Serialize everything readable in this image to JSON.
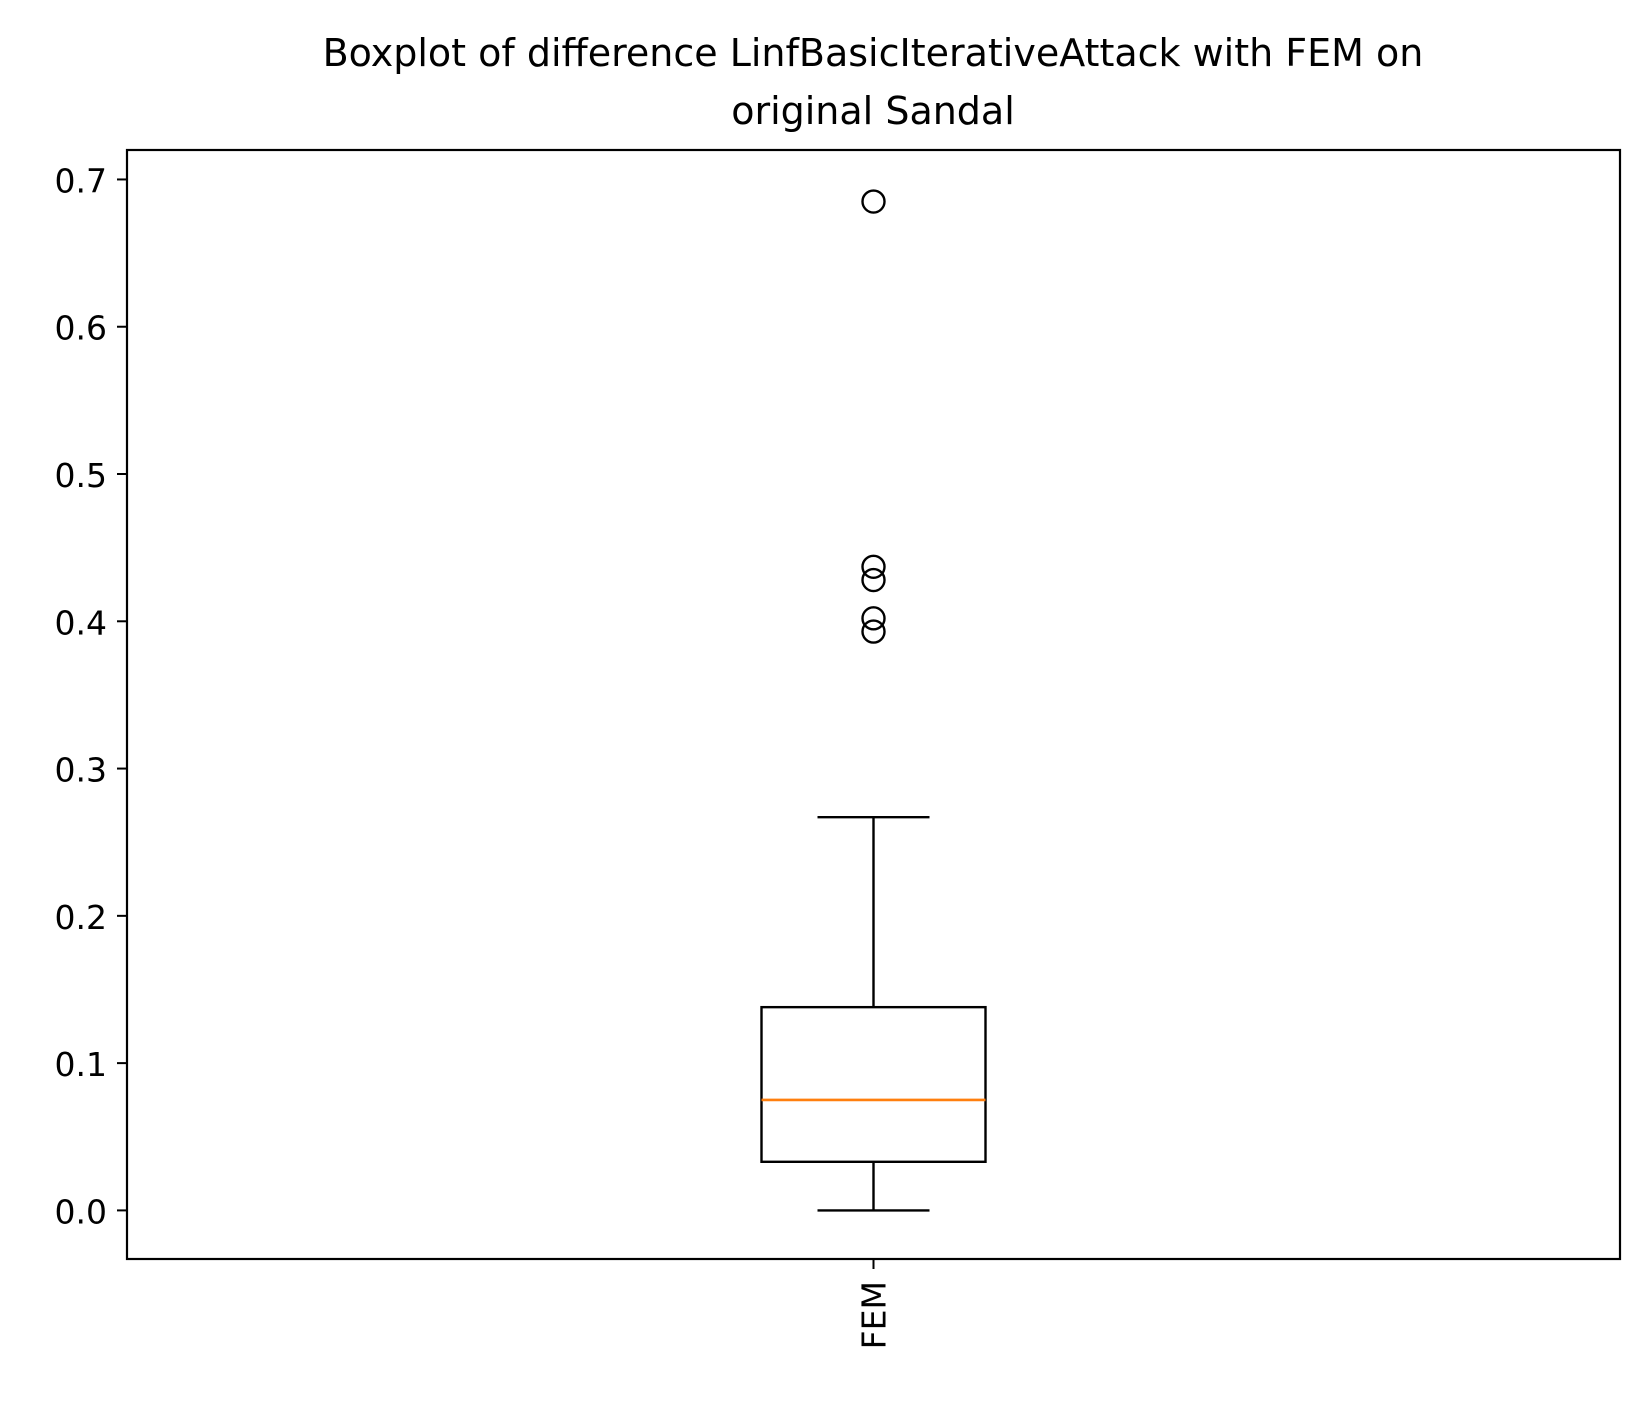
{
  "chart_data": {
    "type": "box",
    "title_lines": [
      "Boxplot of difference LinfBasicIterativeAttack with FEM on",
      "original Sandal"
    ],
    "xlabel": "",
    "ylabel": "",
    "ylim": [
      -0.033,
      0.72
    ],
    "yticks": [
      0.0,
      0.1,
      0.2,
      0.3,
      0.4,
      0.5,
      0.6,
      0.7
    ],
    "ytick_labels": [
      "0.0",
      "0.1",
      "0.2",
      "0.3",
      "0.4",
      "0.5",
      "0.6",
      "0.7"
    ],
    "categories": [
      "FEM"
    ],
    "boxes": [
      {
        "label": "FEM",
        "whisker_low": 0.0,
        "q1": 0.033,
        "median": 0.075,
        "q3": 0.138,
        "whisker_high": 0.267,
        "outliers": [
          0.393,
          0.402,
          0.428,
          0.437,
          0.685
        ]
      }
    ],
    "grid": false,
    "colors": {
      "box": "#000000",
      "median": "#ff7f0e",
      "outlier": "#000000"
    }
  }
}
